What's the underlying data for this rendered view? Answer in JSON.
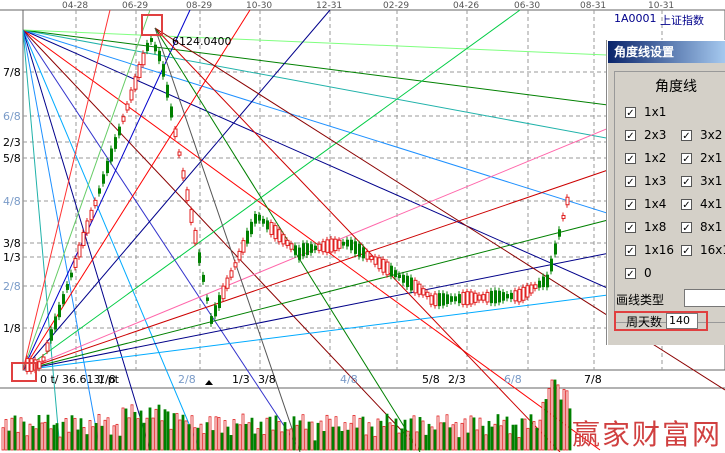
{
  "top_dates": [
    "04-28",
    "06-29",
    "08-29",
    "10-30",
    "12-31",
    "02-29",
    "04-26",
    "06-30",
    "08-31",
    "10-31"
  ],
  "symbol": "1A0001",
  "index_name": "上证指数",
  "peak_label": "6124.0400",
  "low_label": "0 t/ 36.613/ pt",
  "left_fractions": [
    "7/8",
    "6/8",
    "2/3",
    "5/8",
    "4/8",
    "3/8",
    "1/3",
    "2/8",
    "1/8"
  ],
  "bottom_fractions": [
    "1/8",
    "2/8",
    "1/3",
    "3/8",
    "4/8",
    "5/8",
    "2/3",
    "6/8",
    "7/8"
  ],
  "watermark": "赢家财富网",
  "dialog": {
    "title": "角度线设置",
    "group_title": "角度线",
    "items_col1": [
      "1x1",
      "2x3",
      "1x2",
      "1x3",
      "1x4",
      "1x8",
      "1x16",
      "0"
    ],
    "items_col2": [
      "3x2",
      "2x1",
      "3x1",
      "4x1",
      "8x1",
      "16x1"
    ],
    "line_type_label": "画线类型",
    "weeks_label": "周天数",
    "weeks_value": "140"
  },
  "colors": {
    "grid": "#777777",
    "up": "#e02020",
    "down": "#008000",
    "highlight": "#e04040"
  }
}
